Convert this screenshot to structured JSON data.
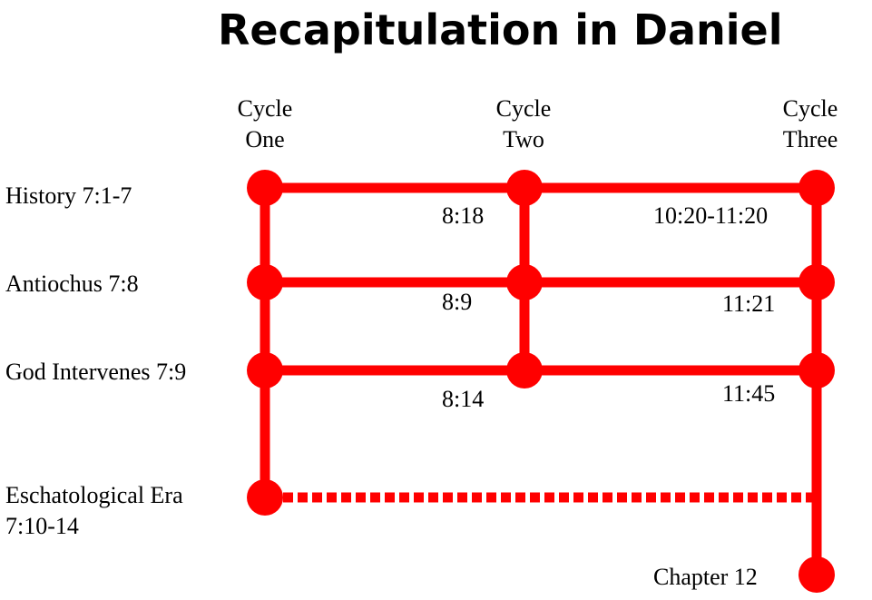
{
  "title": "Recapitulation in Daniel",
  "columns": [
    {
      "line1": "Cycle",
      "line2": "One"
    },
    {
      "line1": "Cycle",
      "line2": "Two"
    },
    {
      "line1": "Cycle",
      "line2": "Three"
    }
  ],
  "rows": [
    {
      "label": "History 7:1-7"
    },
    {
      "label": "Antiochus 7:8"
    },
    {
      "label": "God Intervenes 7:9"
    },
    {
      "label_line1": "Eschatological Era",
      "label_line2": "7:10-14"
    }
  ],
  "references": {
    "cycle_two": [
      "8:18",
      "8:9",
      "8:14"
    ],
    "cycle_three": [
      "10:20-11:20",
      "11:21",
      "11:45"
    ]
  },
  "end_label": "Chapter 12",
  "colors": {
    "accent": "#ff0000",
    "text": "#000000",
    "background": "#ffffff"
  }
}
